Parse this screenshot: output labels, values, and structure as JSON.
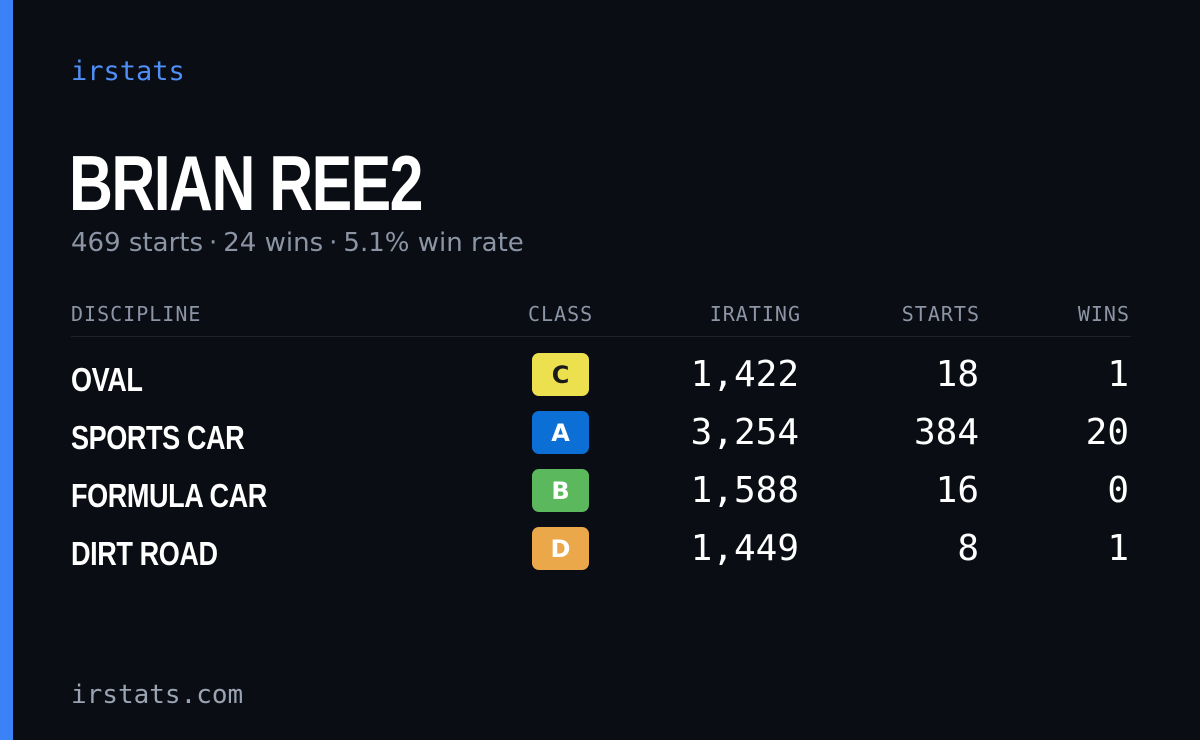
{
  "brand": "irstats",
  "driver": {
    "name": "BRIAN REE2"
  },
  "summary": {
    "starts": "469 starts",
    "wins": "24 wins",
    "win_rate": "5.1% win rate",
    "separator": "·"
  },
  "table": {
    "headers": {
      "discipline": "DISCIPLINE",
      "class": "CLASS",
      "irating": "IRATING",
      "starts": "STARTS",
      "wins": "WINS"
    },
    "rows": [
      {
        "discipline": "OVAL",
        "class": "C",
        "irating": "1,422",
        "starts": "18",
        "wins": "1"
      },
      {
        "discipline": "SPORTS CAR",
        "class": "A",
        "irating": "3,254",
        "starts": "384",
        "wins": "20"
      },
      {
        "discipline": "FORMULA CAR",
        "class": "B",
        "irating": "1,588",
        "starts": "16",
        "wins": "0"
      },
      {
        "discipline": "DIRT ROAD",
        "class": "D",
        "irating": "1,449",
        "starts": "8",
        "wins": "1"
      }
    ]
  },
  "class_colors": {
    "A": {
      "bg": "#0b6fd6",
      "fg": "#ffffff"
    },
    "B": {
      "bg": "#5cb85c",
      "fg": "#ffffff"
    },
    "C": {
      "bg": "#ede04f",
      "fg": "#1a1a1a"
    },
    "D": {
      "bg": "#eaa84b",
      "fg": "#ffffff"
    }
  },
  "footer": "irstats.com",
  "colors": {
    "accent": "#3b82f6",
    "background": "#0a0d14"
  }
}
